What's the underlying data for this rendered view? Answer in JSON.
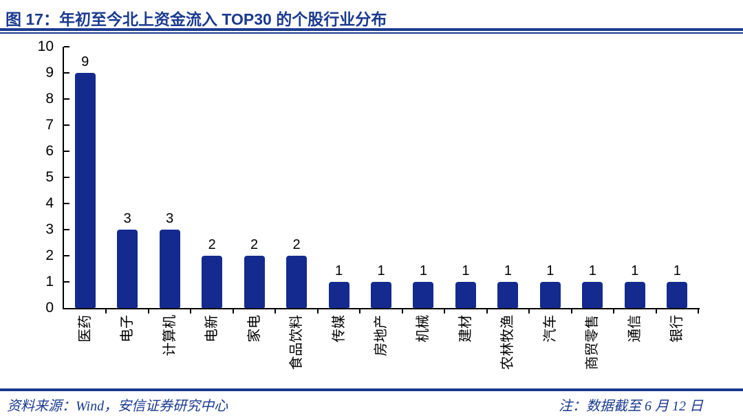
{
  "title": "图 17：年初至今北上资金流入 TOP30 的个股行业分布",
  "footer": {
    "source": "资料来源：Wind，安信证券研究中心",
    "note": "注：数据截至 6 月 12 日"
  },
  "colors": {
    "accent": "#1B3A8F",
    "bar": "#142A8E",
    "axis": "#000000",
    "text": "#000000"
  },
  "chart_data": {
    "type": "bar",
    "title": "年初至今北上资金流入 TOP30 的个股行业分布",
    "categories": [
      "医药",
      "电子",
      "计算机",
      "电新",
      "家电",
      "食品饮料",
      "传媒",
      "房地产",
      "机械",
      "建材",
      "农林牧渔",
      "汽车",
      "商贸零售",
      "通信",
      "银行"
    ],
    "values": [
      9,
      3,
      3,
      2,
      2,
      2,
      1,
      1,
      1,
      1,
      1,
      1,
      1,
      1,
      1
    ],
    "xlabel": "",
    "ylabel": "",
    "ylim": [
      0,
      10
    ],
    "yticks": [
      0,
      1,
      2,
      3,
      4,
      5,
      6,
      7,
      8,
      9,
      10
    ],
    "grid": false,
    "legend_position": "none",
    "data_labels": true,
    "bar_color": "#142A8E",
    "category_label_rotation_deg": -90
  }
}
